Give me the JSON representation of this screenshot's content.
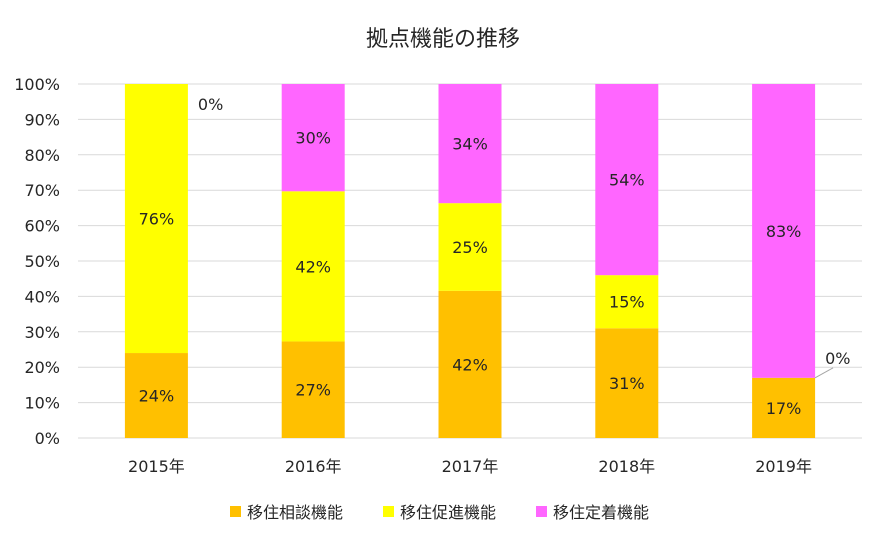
{
  "chart_data": {
    "type": "bar",
    "stacked": "percent",
    "title": "拠点機能の推移",
    "xlabel": "",
    "ylabel": "",
    "categories": [
      "2015年",
      "2016年",
      "2017年",
      "2018年",
      "2019年"
    ],
    "ylim": [
      0,
      100
    ],
    "yticks": [
      "0%",
      "10%",
      "20%",
      "30%",
      "40%",
      "50%",
      "60%",
      "70%",
      "80%",
      "90%",
      "100%"
    ],
    "grid": true,
    "legend_position": "bottom",
    "series": [
      {
        "name": "移住相談機能",
        "color": "#FFC000",
        "values": [
          24,
          27,
          42,
          31,
          17
        ],
        "labels": [
          "24%",
          "27%",
          "42%",
          "31%",
          "17%"
        ]
      },
      {
        "name": "移住促進機能",
        "color": "#FFFF00",
        "values": [
          76,
          42,
          25,
          15,
          0
        ],
        "labels": [
          "76%",
          "42%",
          "25%",
          "15%",
          "0%"
        ]
      },
      {
        "name": "移住定着機能",
        "color": "#FF66FF",
        "values": [
          0,
          30,
          34,
          54,
          83
        ],
        "labels": [
          "0%",
          "30%",
          "34%",
          "54%",
          "83%"
        ]
      }
    ]
  }
}
